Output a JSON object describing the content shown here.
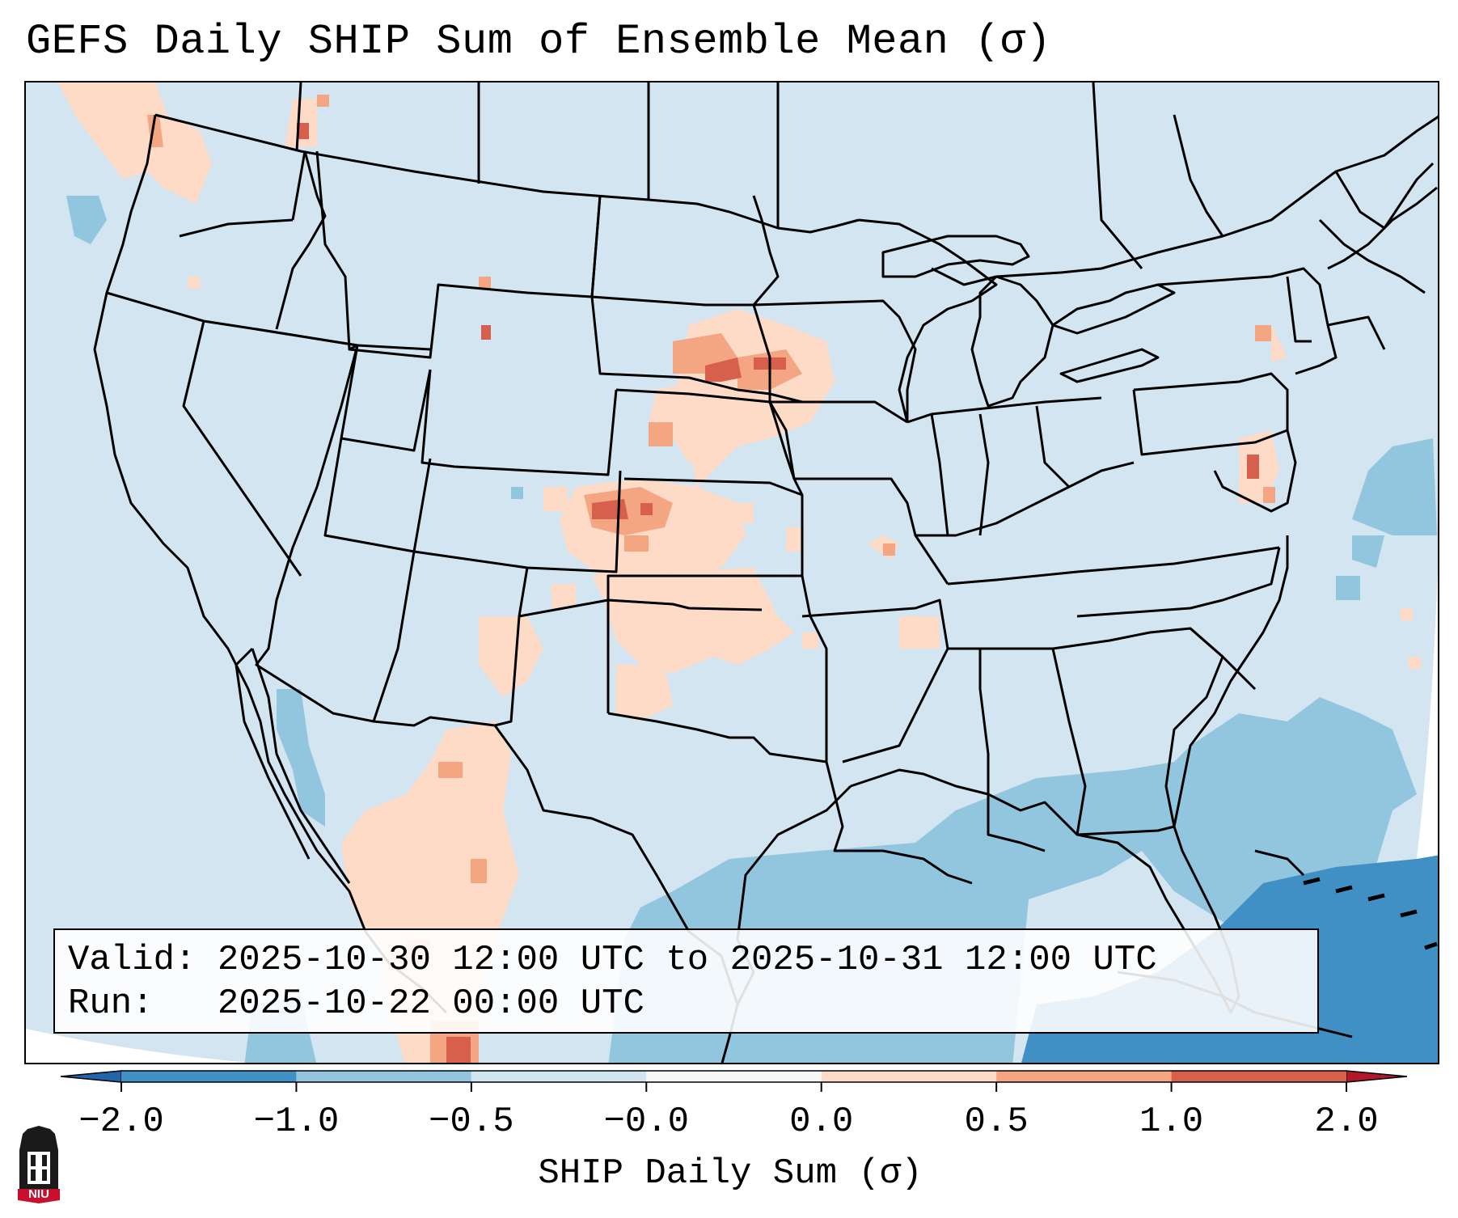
{
  "title": "GEFS Daily SHIP Sum of Ensemble Mean (σ)",
  "info": {
    "valid_label": "Valid:",
    "valid_value": "2025-10-30 12:00 UTC to 2025-10-31 12:00 UTC",
    "run_label": "Run:",
    "run_value": "2025-10-22 00:00 UTC"
  },
  "colorbar": {
    "label": "SHIP Daily Sum (σ)",
    "tick_labels": [
      "−2.0",
      "−1.0",
      "−0.5",
      "−0.0",
      "0.0",
      "0.5",
      "1.0",
      "2.0"
    ],
    "bin_edges": [
      -2.0,
      -1.0,
      -0.5,
      -0.0,
      0.0,
      0.5,
      1.0,
      2.0
    ],
    "bin_colors": [
      "#4190c5",
      "#92c5de",
      "#d1e5f0",
      "#f7f7f7",
      "#fddbc7",
      "#f4a582",
      "#d6604d"
    ],
    "under_color": "#2166ac",
    "over_color": "#b2182b",
    "extend": "both"
  },
  "logo": {
    "text": "NIU",
    "icon": "university-tower-logo"
  }
}
